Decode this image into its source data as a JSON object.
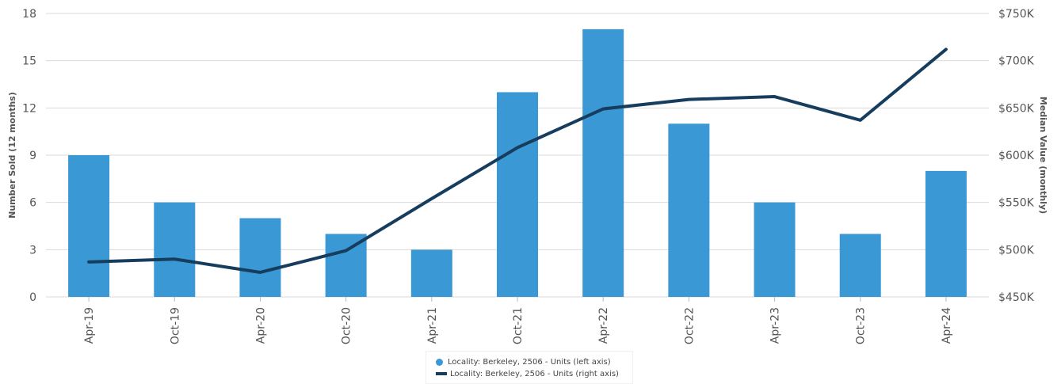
{
  "chart_data": {
    "type": "bar+line",
    "categories": [
      "Apr-19",
      "Oct-19",
      "Apr-20",
      "Oct-20",
      "Apr-21",
      "Oct-21",
      "Apr-22",
      "Oct-22",
      "Apr-23",
      "Oct-23",
      "Apr-24"
    ],
    "series": [
      {
        "name": "Locality: Berkeley, 2506 - Units (left axis)",
        "type": "bar",
        "axis": "left",
        "color": "#3a98d5",
        "values": [
          9,
          6,
          5,
          4,
          3,
          13,
          17,
          11,
          6,
          4,
          8
        ]
      },
      {
        "name": "Locality: Berkeley, 2506 - Units (right axis)",
        "type": "line",
        "axis": "right",
        "color": "#163d5e",
        "values": [
          487000,
          490000,
          476000,
          499000,
          554000,
          608000,
          649000,
          659000,
          662000,
          637000,
          712000
        ]
      }
    ],
    "ylabel_left": "Number Sold (12 months)",
    "ylabel_right": "Median Value (monthly)",
    "ylim_left": [
      0,
      18
    ],
    "ylim_right": [
      450000,
      750000
    ],
    "yticks_left": [
      "0",
      "3",
      "6",
      "9",
      "12",
      "15",
      "18"
    ],
    "yticks_right": [
      "$450K",
      "$500K",
      "$550K",
      "$600K",
      "$650K",
      "$700K",
      "$750K"
    ],
    "grid": true,
    "legend_position": "bottom-center"
  }
}
